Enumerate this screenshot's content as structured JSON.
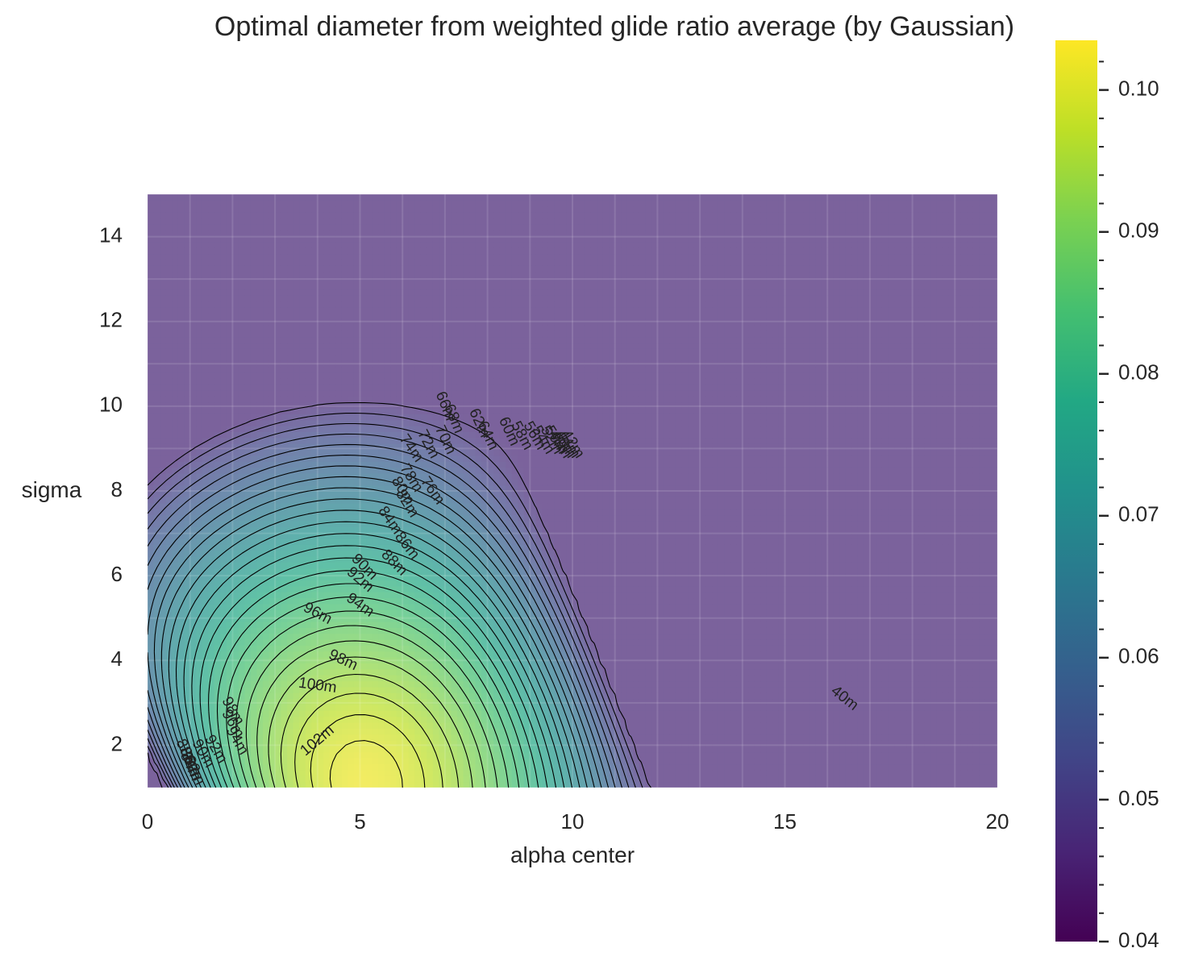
{
  "chart_data": {
    "type": "heatmap",
    "title": "Optimal diameter from weighted glide ratio average (by Gaussian)",
    "xlabel": "alpha center",
    "ylabel": "sigma",
    "xlim": [
      0,
      20
    ],
    "ylim": [
      1,
      15
    ],
    "x_ticks": [
      0,
      5,
      10,
      15,
      20
    ],
    "y_ticks": [
      2,
      4,
      6,
      8,
      10,
      12,
      14
    ],
    "colorbar": {
      "colormap": "viridis",
      "range": [
        0.04,
        0.1035
      ],
      "ticks": [
        0.04,
        0.05,
        0.06,
        0.07,
        0.08,
        0.09,
        0.1
      ],
      "tick_labels": [
        "0.04",
        "0.05",
        "0.06",
        "0.07",
        "0.08",
        "0.09",
        "0.10"
      ]
    },
    "colormap_stops": [
      "#440154",
      "#482475",
      "#414487",
      "#355f8d",
      "#2a788e",
      "#21918c",
      "#22a884",
      "#44bf70",
      "#7ad151",
      "#bddf26",
      "#fde725"
    ],
    "grid": true,
    "peak": {
      "alpha": 5,
      "sigma": 1,
      "value": 0.1035
    },
    "contour_labels": [
      {
        "text": "102m",
        "x": 4.0,
        "sigma": 2.1,
        "angle": -40
      },
      {
        "text": "100m",
        "x": 4.0,
        "sigma": 3.4,
        "angle": 8
      },
      {
        "text": "98m",
        "x": 4.6,
        "sigma": 4.0,
        "angle": 25
      },
      {
        "text": "96m",
        "x": 4.0,
        "sigma": 5.1,
        "angle": 28
      },
      {
        "text": "94m",
        "x": 5.0,
        "sigma": 5.3,
        "angle": 35
      },
      {
        "text": "92m",
        "x": 5.0,
        "sigma": 5.9,
        "angle": 40
      },
      {
        "text": "90m",
        "x": 5.1,
        "sigma": 6.2,
        "angle": 45
      },
      {
        "text": "88m",
        "x": 5.8,
        "sigma": 6.3,
        "angle": 45
      },
      {
        "text": "86m",
        "x": 6.1,
        "sigma": 6.7,
        "angle": 52
      },
      {
        "text": "84m",
        "x": 5.7,
        "sigma": 7.3,
        "angle": 55
      },
      {
        "text": "82m",
        "x": 6.1,
        "sigma": 7.7,
        "angle": 58
      },
      {
        "text": "80m",
        "x": 6.0,
        "sigma": 8.0,
        "angle": 58
      },
      {
        "text": "78m",
        "x": 6.2,
        "sigma": 8.3,
        "angle": 58
      },
      {
        "text": "76m",
        "x": 6.7,
        "sigma": 8.0,
        "angle": 55
      },
      {
        "text": "74m",
        "x": 6.2,
        "sigma": 9.0,
        "angle": 55
      },
      {
        "text": "72m",
        "x": 6.6,
        "sigma": 9.1,
        "angle": 62
      },
      {
        "text": "70m",
        "x": 7.0,
        "sigma": 9.2,
        "angle": 65
      },
      {
        "text": "68m",
        "x": 7.2,
        "sigma": 9.7,
        "angle": 68
      },
      {
        "text": "66m",
        "x": 7.0,
        "sigma": 10.0,
        "angle": 68
      },
      {
        "text": "64m",
        "x": 8.0,
        "sigma": 9.3,
        "angle": 65
      },
      {
        "text": "62m",
        "x": 7.8,
        "sigma": 9.6,
        "angle": 65
      },
      {
        "text": "60m",
        "x": 8.5,
        "sigma": 9.4,
        "angle": 65
      },
      {
        "text": "58m",
        "x": 8.8,
        "sigma": 9.3,
        "angle": 62
      },
      {
        "text": "56m",
        "x": 9.1,
        "sigma": 9.3,
        "angle": 60
      },
      {
        "text": "54m",
        "x": 9.3,
        "sigma": 9.2,
        "angle": 60
      },
      {
        "text": "52m",
        "x": 9.5,
        "sigma": 9.2,
        "angle": 60
      },
      {
        "text": "50m",
        "x": 9.6,
        "sigma": 9.2,
        "angle": 58
      },
      {
        "text": "48m",
        "x": 9.7,
        "sigma": 9.1,
        "angle": 58
      },
      {
        "text": "46m",
        "x": 9.8,
        "sigma": 9.1,
        "angle": 58
      },
      {
        "text": "44m",
        "x": 9.9,
        "sigma": 9.1,
        "angle": 58
      },
      {
        "text": "42m",
        "x": 10.0,
        "sigma": 9.1,
        "angle": 58
      },
      {
        "text": "98m",
        "x": 2.0,
        "sigma": 2.8,
        "angle": 60
      },
      {
        "text": "96m",
        "x": 2.0,
        "sigma": 2.5,
        "angle": 60
      },
      {
        "text": "94m",
        "x": 2.1,
        "sigma": 2.1,
        "angle": 60
      },
      {
        "text": "92m",
        "x": 1.6,
        "sigma": 1.9,
        "angle": 60
      },
      {
        "text": "90m",
        "x": 1.3,
        "sigma": 1.8,
        "angle": 60
      },
      {
        "text": "88m",
        "x": 0.9,
        "sigma": 1.8,
        "angle": 65
      },
      {
        "text": "86m",
        "x": 1.0,
        "sigma": 1.6,
        "angle": 65
      },
      {
        "text": "84m",
        "x": 1.0,
        "sigma": 1.5,
        "angle": 65
      },
      {
        "text": "82m",
        "x": 1.1,
        "sigma": 1.4,
        "angle": 65
      },
      {
        "text": "40m",
        "x": 16.4,
        "sigma": 3.1,
        "angle": 38
      }
    ]
  }
}
